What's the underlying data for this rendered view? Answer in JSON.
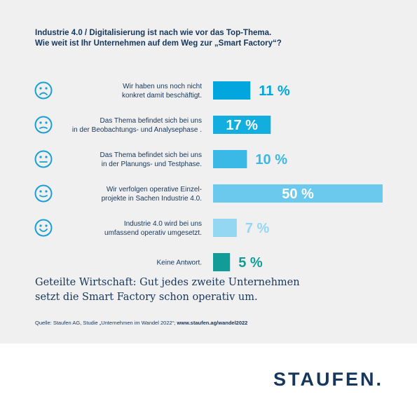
{
  "chart_data": {
    "type": "bar",
    "orientation": "horizontal",
    "title_lines": [
      "Industrie 4.0 / Digitalisierung ist nach wie vor das Top-Thema.",
      "Wie weit ist Ihr Unternehmen auf dem Weg zur „Smart Factory“?"
    ],
    "categories": [
      [
        "Wir haben uns noch nicht",
        "konkret damit beschäftigt."
      ],
      [
        "Das Thema befindet sich bei uns",
        "in der Beobachtungs- und Analysephase ."
      ],
      [
        "Das Thema befindet sich bei uns",
        "in der Planungs- und Testphase."
      ],
      [
        "Wir verfolgen operative Einzel-",
        "projekte in Sachen Industrie 4.0."
      ],
      [
        "Industrie 4.0 wird bei uns",
        "umfassend operativ umgesetzt."
      ],
      [
        "Keine Antwort."
      ]
    ],
    "values": [
      11,
      17,
      10,
      50,
      7,
      5
    ],
    "value_labels": [
      "11 %",
      "17 %",
      "10 %",
      "50 %",
      "7 %",
      "5 %"
    ],
    "icons": [
      "sad-face-icon",
      "frown-face-icon",
      "neutral-face-icon",
      "slight-smile-face-icon",
      "smile-face-icon",
      ""
    ],
    "colors": [
      "#00a6dd",
      "#13aee0",
      "#3bb9e6",
      "#6cc9ee",
      "#94d7f3",
      "#119c97"
    ],
    "value_label_inside": [
      false,
      true,
      false,
      true,
      false,
      false
    ],
    "xlim": [
      0,
      50
    ]
  },
  "summary_lines": [
    "Geteilte Wirtschaft: Gut jedes zweite Unternehmen",
    "setzt die Smart Factory schon operativ um."
  ],
  "source": {
    "text": "Quelle: Staufen AG, Studie „Unternehmen im Wandel 2022“; ",
    "link": "www.staufen.ag/wandel2022"
  },
  "brand": {
    "logo_text": "STAUFEN.",
    "color_primary": "#16365c",
    "color_icon": "#1a9fd6"
  }
}
